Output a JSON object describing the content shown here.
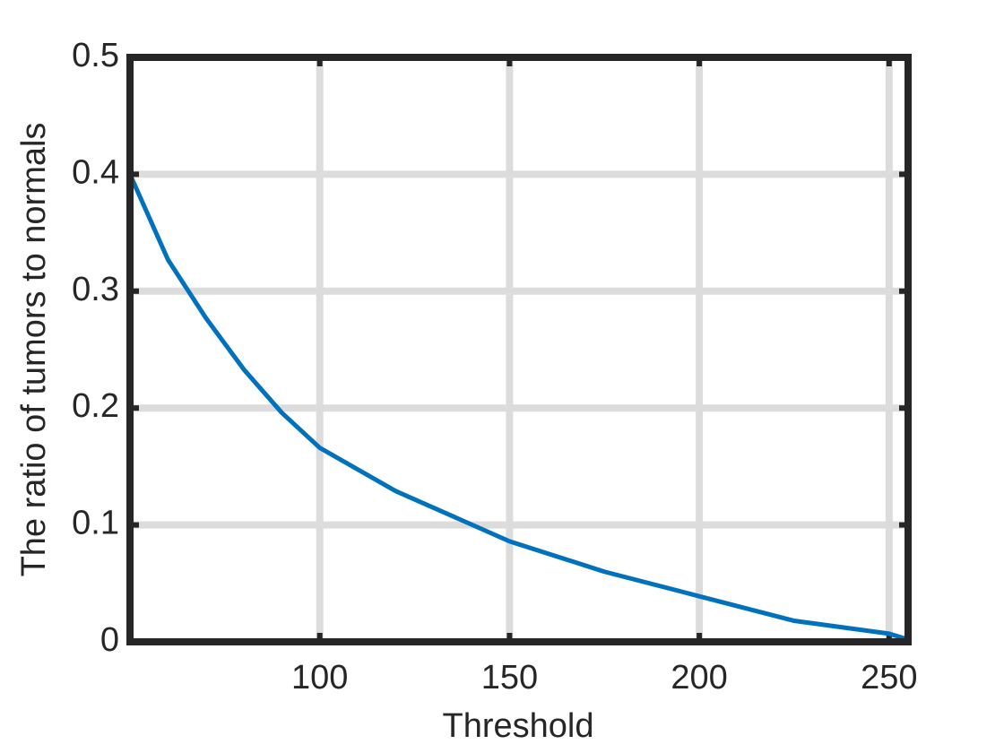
{
  "chart_data": {
    "type": "line",
    "xlabel": "Threshold",
    "ylabel": "The ratio of tumors to normals",
    "x": [
      50,
      60,
      70,
      80,
      90,
      100,
      120,
      150,
      175,
      200,
      225,
      250,
      255
    ],
    "series": [
      {
        "color": "#0072bd",
        "values": [
          0.4,
          0.327,
          0.277,
          0.233,
          0.196,
          0.166,
          0.129,
          0.086,
          0.06,
          0.039,
          0.018,
          0.007,
          0.002
        ]
      }
    ],
    "xlim": [
      50,
      255
    ],
    "ylim": [
      0,
      0.5
    ],
    "xticks": [
      100,
      150,
      200,
      250
    ],
    "yticks": [
      0,
      0.1,
      0.2,
      0.3,
      0.4,
      0.5
    ],
    "grid": true
  }
}
